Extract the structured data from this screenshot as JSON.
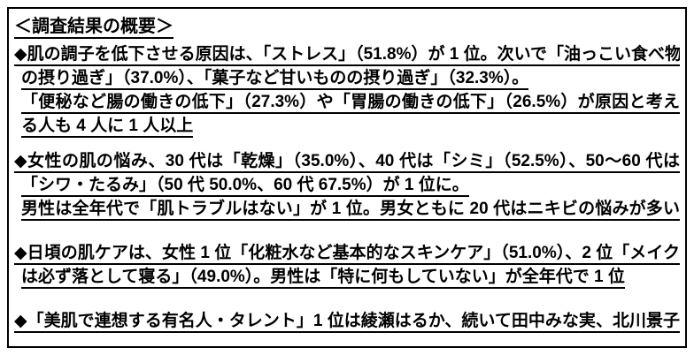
{
  "doc": {
    "title": "＜調査結果の概要＞",
    "paragraphs": [
      {
        "lines": [
          "◆肌の調子を低下させる原因は、「ストレス」（51.8%）が 1 位。次いで「油っこい食べ物",
          "の摂り過ぎ」（37.0%）、「菓子など甘いものの摂り過ぎ」（32.3%）。",
          "「便秘など腸の働きの低下」（27.3%）や「胃腸の働きの低下」（26.5%）が原因と考え",
          "る人も 4 人に 1 人以上"
        ]
      },
      {
        "lines": [
          "◆女性の肌の悩み、30 代は「乾燥」（35.0%）、40 代は「シミ」（52.5%）、50～60 代は",
          "「シワ・たるみ」（50 代 50.0%、60 代 67.5%）が 1 位に。",
          "男性は全年代で「肌トラブルはない」が 1 位。男女ともに 20 代はニキビの悩みが多い"
        ]
      },
      {
        "lines": [
          "◆日頃の肌ケアは、女性 1 位「化粧水など基本的なスキンケア」（51.0%）、2 位「メイク",
          "は必ず落として寝る」（49.0%）。男性は「特に何もしていない」が全年代で 1 位"
        ]
      },
      {
        "lines": [
          "◆「美肌で連想する有名人・タレント」1 位は綾瀬はるか、続いて田中みな実、北川景子"
        ]
      }
    ],
    "colors": {
      "text": "#000000",
      "border": "#000000",
      "background": "#ffffff"
    }
  }
}
